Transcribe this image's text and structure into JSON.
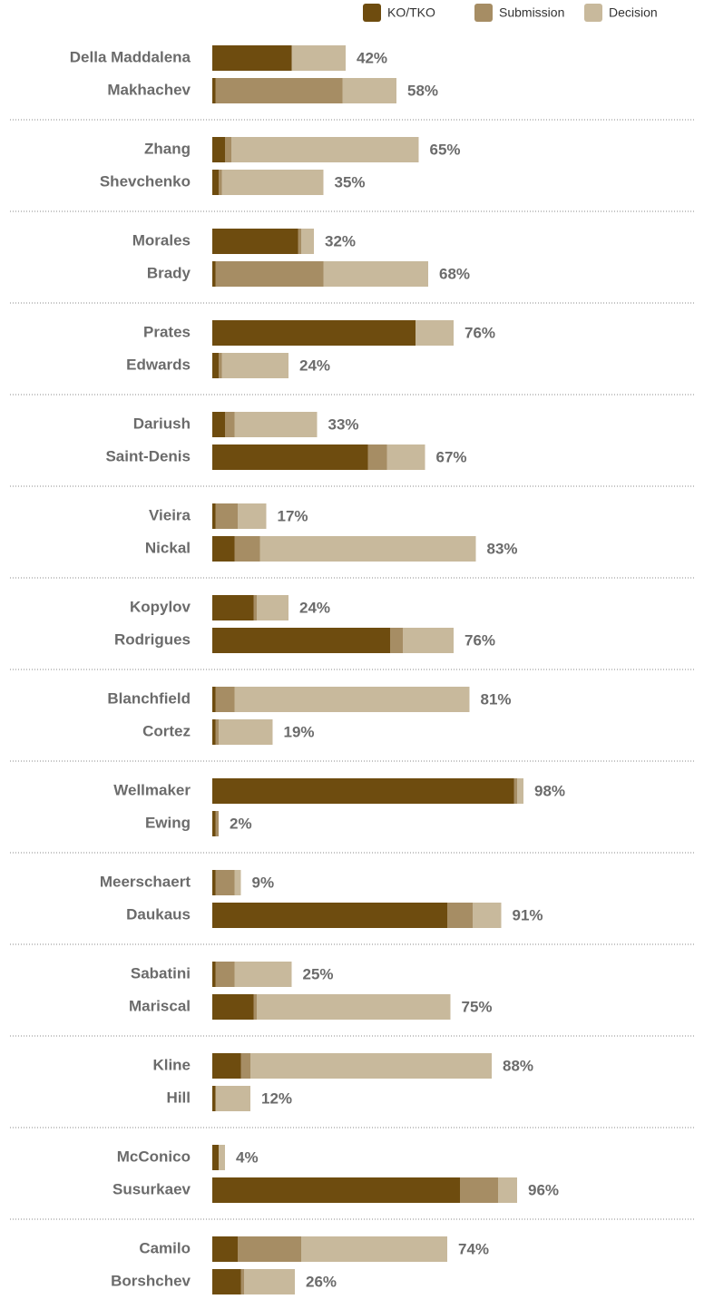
{
  "chart_data": {
    "type": "bar",
    "orientation": "horizontal",
    "stacked": true,
    "categories": [
      "Della Maddalena",
      "Makhachev",
      "Zhang",
      "Shevchenko",
      "Morales",
      "Brady",
      "Prates",
      "Edwards",
      "Dariush",
      "Saint-Denis",
      "Vieira",
      "Nickal",
      "Kopylov",
      "Rodrigues",
      "Blanchfield",
      "Cortez",
      "Wellmaker",
      "Ewing",
      "Meerschaert",
      "Daukaus",
      "Sabatini",
      "Mariscal",
      "Kline",
      "Hill",
      "McConico",
      "Susurkaev",
      "Camilo",
      "Borshchev"
    ],
    "series": [
      {
        "name": "KO/TKO",
        "color": "#6e4c0f",
        "values": [
          25,
          1,
          4,
          2,
          27,
          1,
          64,
          2,
          4,
          49,
          1,
          7,
          13,
          56,
          1,
          1,
          95,
          1,
          1,
          74,
          1,
          13,
          9,
          1,
          2,
          78,
          8,
          9
        ]
      },
      {
        "name": "Submission",
        "color": "#a68d64",
        "values": [
          0,
          40,
          2,
          1,
          1,
          34,
          0,
          1,
          3,
          6,
          7,
          8,
          1,
          4,
          6,
          1,
          1,
          1,
          6,
          8,
          6,
          1,
          3,
          0,
          0,
          12,
          20,
          1
        ]
      },
      {
        "name": "Decision",
        "color": "#c8b99c",
        "values": [
          17,
          17,
          59,
          32,
          4,
          33,
          12,
          21,
          26,
          12,
          9,
          68,
          10,
          16,
          74,
          17,
          2,
          0,
          2,
          9,
          18,
          61,
          76,
          11,
          2,
          6,
          46,
          16
        ]
      }
    ],
    "totals": [
      42,
      58,
      65,
      35,
      32,
      68,
      76,
      24,
      33,
      67,
      17,
      83,
      24,
      76,
      81,
      19,
      98,
      2,
      9,
      91,
      25,
      75,
      88,
      12,
      4,
      96,
      74,
      26
    ],
    "total_labels": [
      "42%",
      "58%",
      "65%",
      "35%",
      "32%",
      "68%",
      "76%",
      "24%",
      "33%",
      "67%",
      "17%",
      "83%",
      "24%",
      "76%",
      "81%",
      "19%",
      "98%",
      "2%",
      "9%",
      "91%",
      "25%",
      "75%",
      "88%",
      "12%",
      "4%",
      "96%",
      "74%",
      "26%"
    ]
  }
}
